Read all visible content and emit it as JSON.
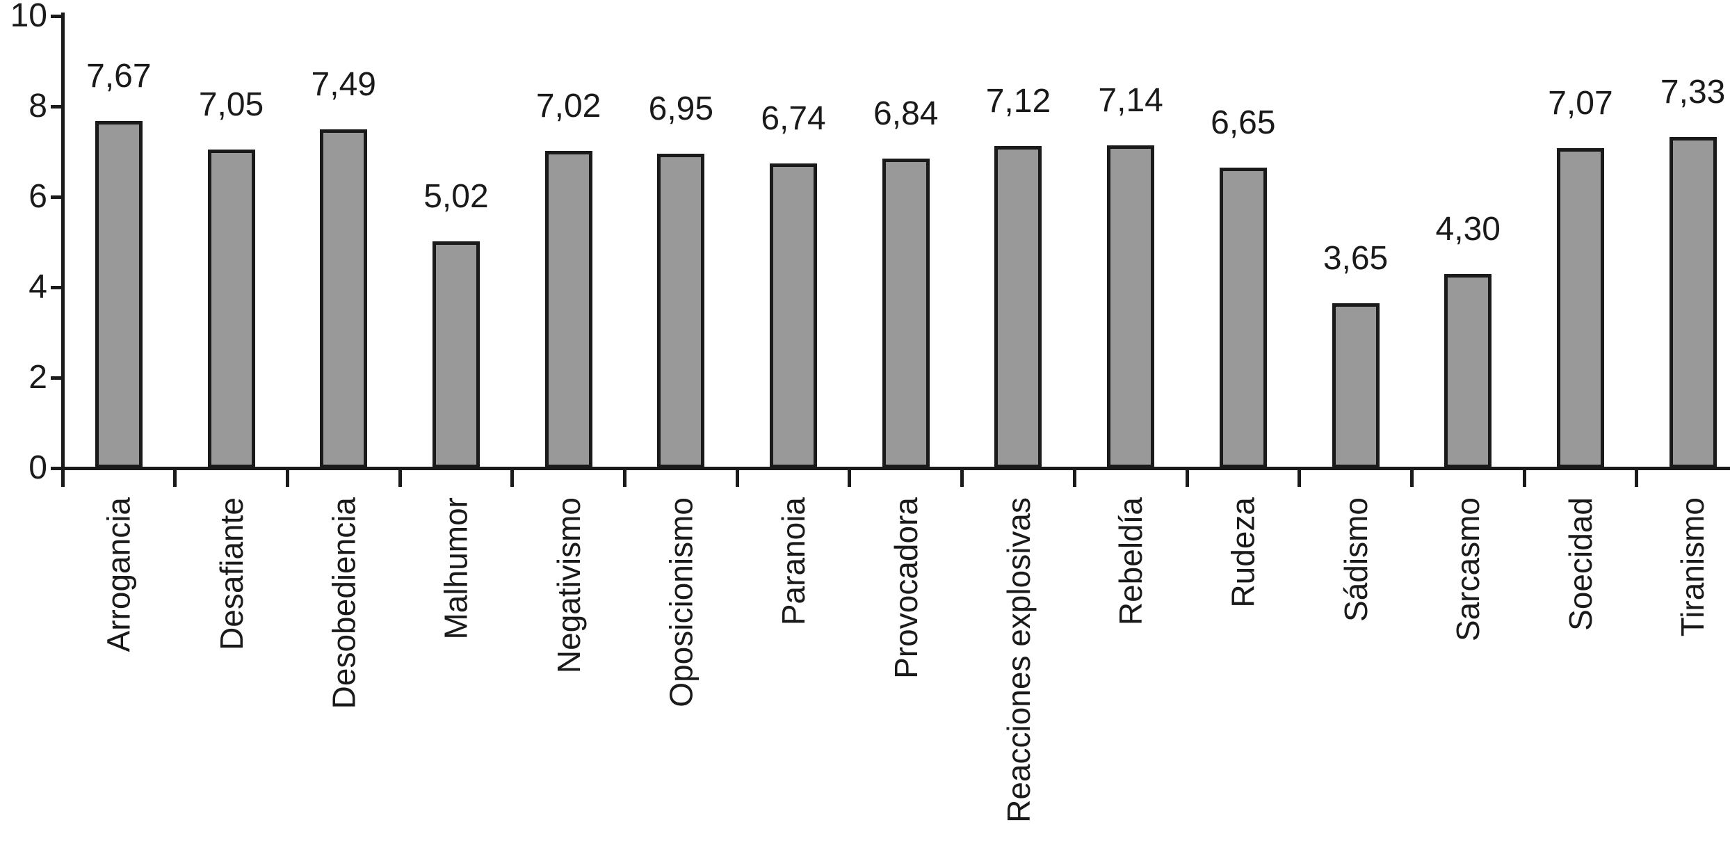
{
  "chart_data": {
    "type": "bar",
    "title": "",
    "xlabel": "",
    "ylabel": "",
    "categories": [
      "Arrogancia",
      "Desafiante",
      "Desobediencia",
      "Malhumor",
      "Negativismo",
      "Oposicionismo",
      "Paranoia",
      "Provocadora",
      "Reacciones explosivas",
      "Rebeldía",
      "Rudeza",
      "Sádismo",
      "Sarcasmo",
      "Soecidad",
      "Tiranismo"
    ],
    "values": [
      7.67,
      7.05,
      7.49,
      5.02,
      7.02,
      6.95,
      6.74,
      6.84,
      7.12,
      7.14,
      6.65,
      3.65,
      4.3,
      7.07,
      7.33
    ],
    "value_labels": [
      "7,67",
      "7,05",
      "7,49",
      "5,02",
      "7,02",
      "6,95",
      "6,74",
      "6,84",
      "7,12",
      "7,14",
      "6,65",
      "3,65",
      "4,30",
      "7,07",
      "7,33"
    ],
    "ylim": [
      0,
      10
    ],
    "yticks": [
      0,
      2,
      4,
      6,
      8,
      10
    ],
    "ytick_labels": [
      "0",
      "2",
      "4",
      "6",
      "8",
      "10"
    ],
    "grid": false,
    "legend_position": "none",
    "bar_fill_color": "#999999",
    "bar_border_color": "#1a1a1a",
    "axis_color": "#1a1a1a",
    "text_color": "#1a1a1a",
    "background_color": "#ffffff"
  }
}
